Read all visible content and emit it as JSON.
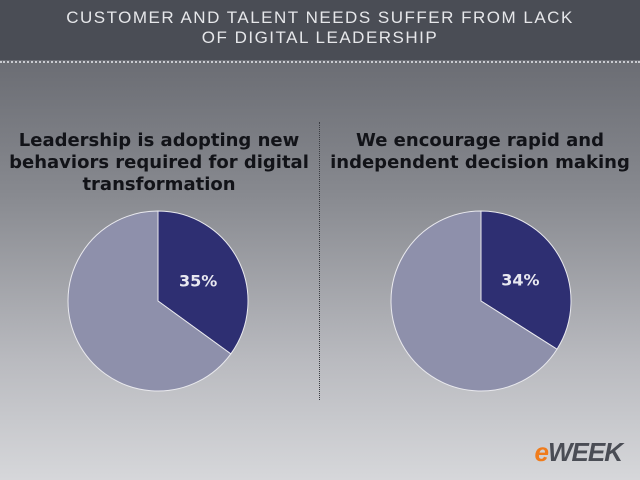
{
  "header": {
    "title_line1": "CUSTOMER AND TALENT NEEDS SUFFER FROM LACK",
    "title_line2": "OF DIGITAL LEADERSHIP"
  },
  "chart_data": [
    {
      "type": "pie",
      "title": "Leadership is adopting new behaviors required for digital transformation",
      "slices": [
        {
          "value": 35,
          "label": "35%",
          "color": "#2e2f72"
        },
        {
          "value": 65,
          "label": "",
          "color": "#8e90ab"
        }
      ]
    },
    {
      "type": "pie",
      "title": "We encourage rapid and independent decision making",
      "slices": [
        {
          "value": 34,
          "label": "34%",
          "color": "#2e2f72"
        },
        {
          "value": 66,
          "label": "",
          "color": "#8e90ab"
        }
      ]
    }
  ],
  "logo": {
    "prefix": "e",
    "text": "WEEK"
  },
  "colors": {
    "accent": "#2e2f72",
    "secondary": "#8e90ab",
    "header": "#4a4d55",
    "logo_accent": "#f07c1c"
  }
}
